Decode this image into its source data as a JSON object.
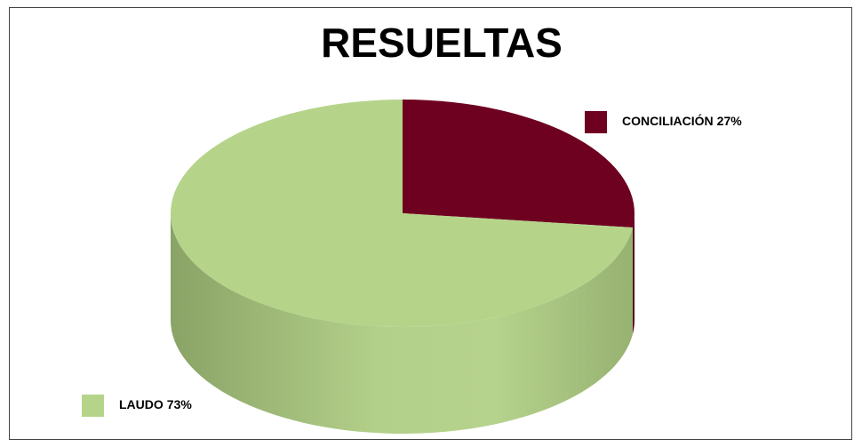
{
  "chart_data": {
    "type": "pie",
    "title": "RESUELTAS",
    "categories": [
      "CONCILIACIÓN",
      "LAUDO"
    ],
    "values": [
      27,
      73
    ],
    "value_labels": [
      "27%",
      "73%"
    ],
    "colors": [
      "#6e0020",
      "#b5d48a"
    ]
  }
}
